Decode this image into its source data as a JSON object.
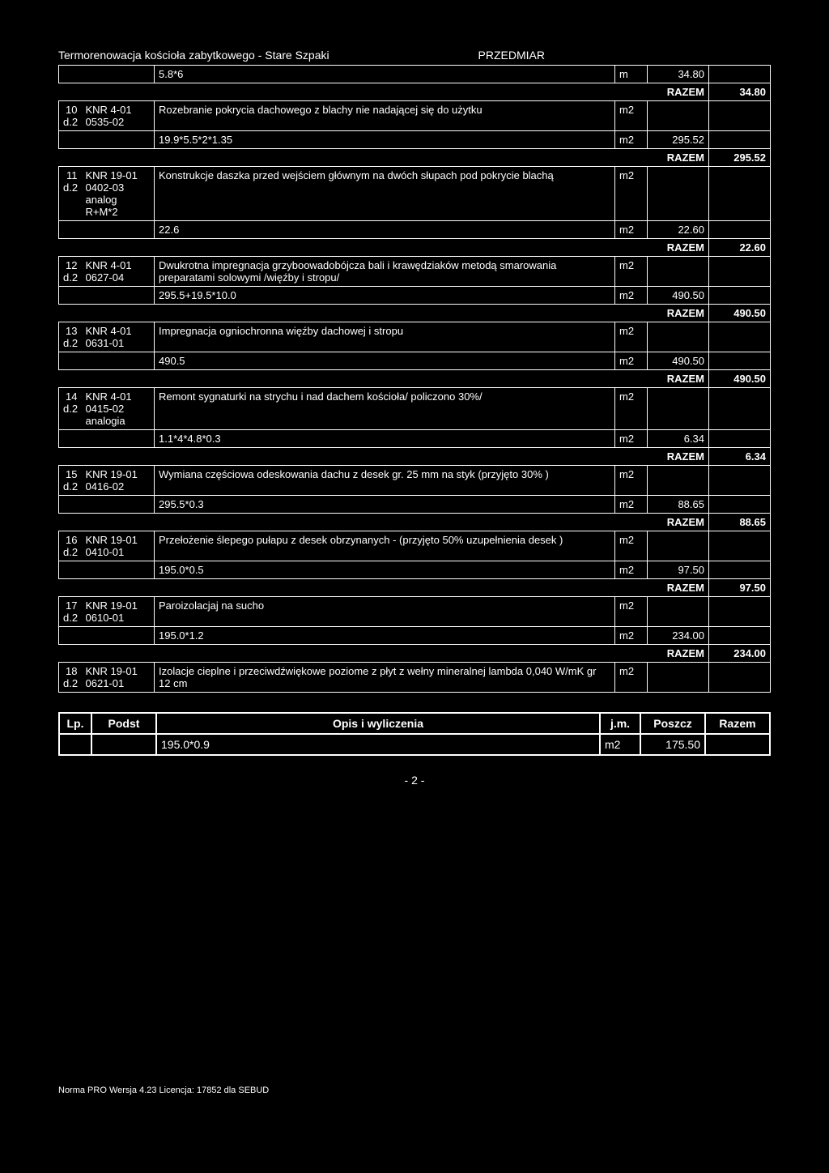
{
  "header": {
    "title_left": "Termorenowacja kościoła zabytkowego - Stare Szpaki",
    "title_right": "PRZEDMIAR"
  },
  "continuation": {
    "calc": "5.8*6",
    "unit": "m",
    "value": "34.80",
    "razem_label": "RAZEM",
    "razem_value": "34.80"
  },
  "items": [
    {
      "num": "10",
      "sub": "d.2",
      "code1": "KNR 4-01",
      "code2": "0535-02",
      "desc": "Rozebranie pokrycia dachowego z blachy nie nadającej się do użytku",
      "calc": "19.9*5.5*2*1.35",
      "unit": "m2",
      "value": "295.52",
      "razem_label": "RAZEM",
      "razem": "295.52"
    },
    {
      "num": "11",
      "sub": "d.2",
      "code1": "KNR 19-01",
      "code2": "0402-03",
      "extra": "analog R+M*2",
      "desc": "Konstrukcje daszka przed wejściem głównym na dwóch słupach pod pokrycie blachą",
      "calc": "22.6",
      "unit": "m2",
      "value": "22.60",
      "razem_label": "RAZEM",
      "razem": "22.60"
    },
    {
      "num": "12",
      "sub": "d.2",
      "code1": "KNR 4-01",
      "code2": "0627-04",
      "desc": "Dwukrotna impregnacja grzyboowadobójcza bali i krawędziaków metodą smarowania preparatami solowymi /więźby i stropu/",
      "calc": "295.5+19.5*10.0",
      "unit": "m2",
      "value": "490.50",
      "razem_label": "RAZEM",
      "razem": "490.50"
    },
    {
      "num": "13",
      "sub": "d.2",
      "code1": "KNR 4-01",
      "code2": "0631-01",
      "desc": "Impregnacja ogniochronna więźby dachowej i stropu",
      "calc": "490.5",
      "unit": "m2",
      "value": "490.50",
      "razem_label": "RAZEM",
      "razem": "490.50"
    },
    {
      "num": "14",
      "sub": "d.2",
      "code1": "KNR 4-01",
      "code2": "0415-02",
      "extra": "analogia",
      "desc": "Remont sygnaturki na strychu i nad dachem kościoła/ policzono 30%/",
      "calc": "1.1*4*4.8*0.3",
      "unit": "m2",
      "value": "6.34",
      "razem_label": "RAZEM",
      "razem": "6.34"
    },
    {
      "num": "15",
      "sub": "d.2",
      "code1": "KNR 19-01",
      "code2": "0416-02",
      "desc": "Wymiana częściowa odeskowania dachu z desek gr. 25 mm na styk (przyjęto 30% )",
      "calc": "295.5*0.3",
      "unit": "m2",
      "value": "88.65",
      "razem_label": "RAZEM",
      "razem": "88.65"
    },
    {
      "num": "16",
      "sub": "d.2",
      "code1": "KNR 19-01",
      "code2": "0410-01",
      "desc": "Przełożenie ślepego pułapu z desek obrzynanych - (przyjęto 50% uzupełnienia desek )",
      "calc": "195.0*0.5",
      "unit": "m2",
      "value": "97.50",
      "razem_label": "RAZEM",
      "razem": "97.50"
    },
    {
      "num": "17",
      "sub": "d.2",
      "code1": "KNR 19-01",
      "code2": "0610-01",
      "desc": "Paroizolacjaj na sucho",
      "calc": "195.0*1.2",
      "unit": "m2",
      "value": "234.00",
      "razem_label": "RAZEM",
      "razem": "234.00"
    },
    {
      "num": "18",
      "sub": "d.2",
      "code1": "KNR 19-01",
      "code2": "0621-01",
      "desc": "Izolacje cieplne i przeciwdźwiękowe poziome z płyt z wełny mineralnej lambda 0,040 W/mK gr 12 cm",
      "unit": "m2"
    }
  ],
  "header2": {
    "cols": [
      "Lp.",
      "Podst",
      "Opis i wyliczenia",
      "j.m.",
      "Poszcz",
      "Razem"
    ],
    "row": {
      "calc": "195.0*0.9",
      "unit": "m2",
      "value": "175.50"
    }
  },
  "page_num": "- 2 -",
  "footer": "Norma PRO Wersja 4.23 Licencja: 17852 dla SEBUD"
}
